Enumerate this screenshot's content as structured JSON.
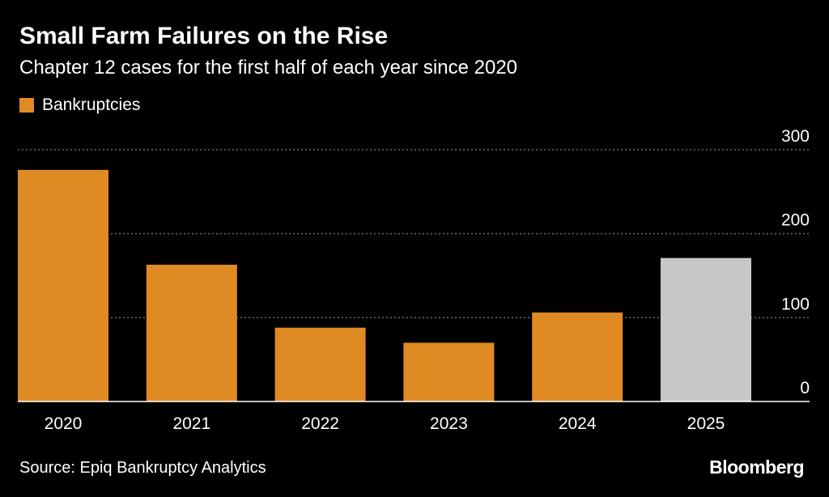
{
  "header": {
    "title": "Small Farm Failures on the Rise",
    "subtitle": "Chapter 12 cases for the first half of each year since 2020"
  },
  "legend": {
    "label": "Bankruptcies"
  },
  "footer": {
    "source": "Source: Epiq Bankruptcy Analytics",
    "brand": "Bloomberg"
  },
  "colors": {
    "background": "#000000",
    "bar": "#E08A24",
    "highlight_bar": "#C7C7C7",
    "gridline": "#6b6b6b",
    "text": "#ffffff"
  },
  "chart_data": {
    "type": "bar",
    "title": "Small Farm Failures on the Rise",
    "subtitle": "Chapter 12 cases for the first half of each year since 2020",
    "xlabel": "",
    "ylabel": "",
    "categories": [
      "2020",
      "2021",
      "2022",
      "2023",
      "2024",
      "2025"
    ],
    "series": [
      {
        "name": "Bankruptcies",
        "values": [
          276,
          163,
          88,
          70,
          106,
          171
        ]
      }
    ],
    "highlight_category": "2025",
    "ylim": [
      0,
      300
    ],
    "yticks": [
      0,
      100,
      200,
      300
    ],
    "y_axis_position": "right",
    "grid": true,
    "legend_position": "top-left"
  }
}
